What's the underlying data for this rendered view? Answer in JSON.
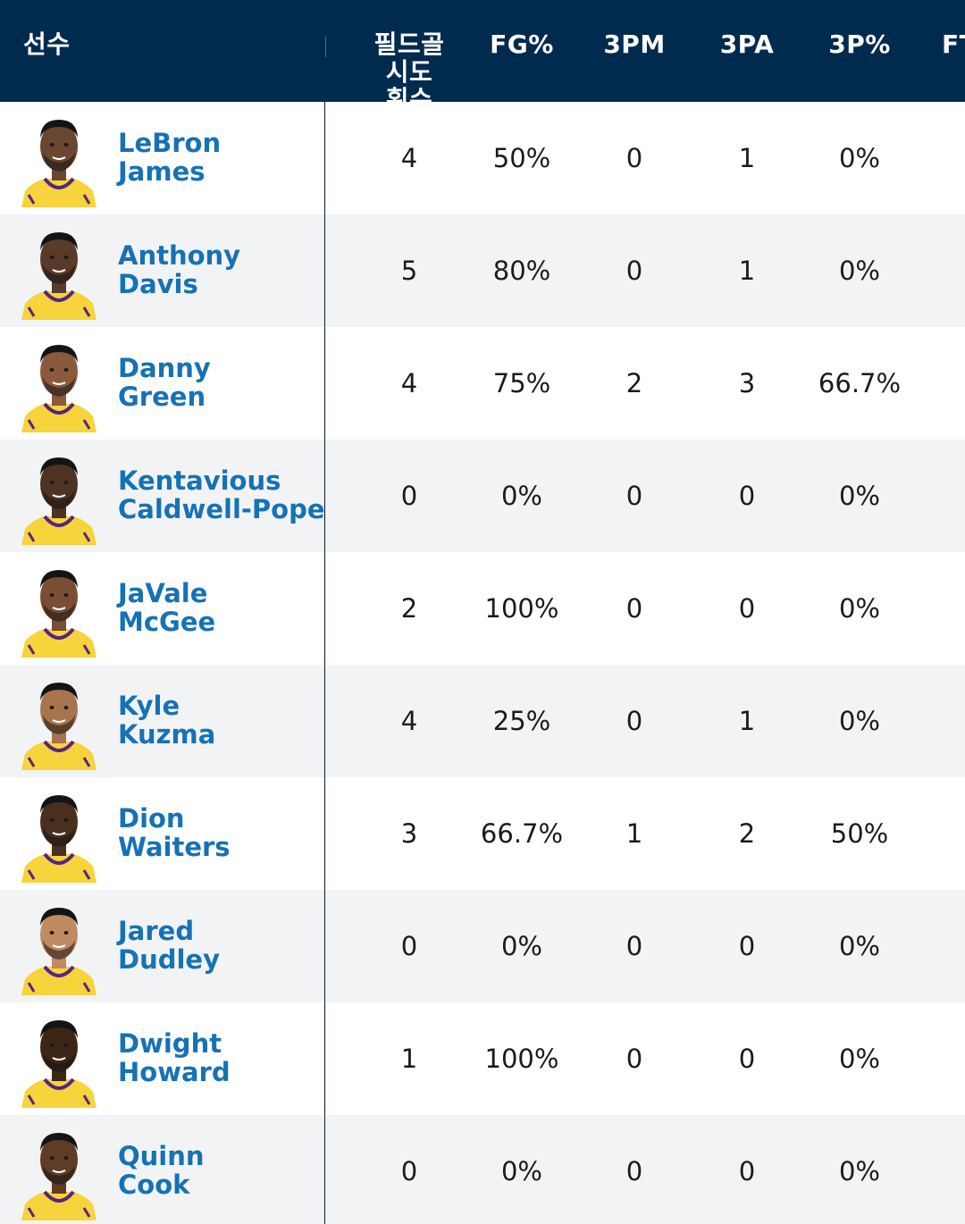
{
  "columns": {
    "player": "선수",
    "fga": "필드골 시도 횟수",
    "fg_pct": "FG%",
    "three_pm": "3PM",
    "three_pa": "3PA",
    "three_pct": "3P%",
    "ft": "FT"
  },
  "players": [
    {
      "first": "LeBron",
      "last": "James",
      "fga": "4",
      "fg_pct": "50%",
      "three_pm": "0",
      "three_pa": "1",
      "three_pct": "0%"
    },
    {
      "first": "Anthony",
      "last": "Davis",
      "fga": "5",
      "fg_pct": "80%",
      "three_pm": "0",
      "three_pa": "1",
      "three_pct": "0%"
    },
    {
      "first": "Danny",
      "last": "Green",
      "fga": "4",
      "fg_pct": "75%",
      "three_pm": "2",
      "three_pa": "3",
      "three_pct": "66.7%"
    },
    {
      "first": "Kentavious",
      "last": "Caldwell-Pope",
      "fga": "0",
      "fg_pct": "0%",
      "three_pm": "0",
      "three_pa": "0",
      "three_pct": "0%"
    },
    {
      "first": "JaVale",
      "last": "McGee",
      "fga": "2",
      "fg_pct": "100%",
      "three_pm": "0",
      "three_pa": "0",
      "three_pct": "0%"
    },
    {
      "first": "Kyle",
      "last": "Kuzma",
      "fga": "4",
      "fg_pct": "25%",
      "three_pm": "0",
      "three_pa": "1",
      "three_pct": "0%"
    },
    {
      "first": "Dion",
      "last": "Waiters",
      "fga": "3",
      "fg_pct": "66.7%",
      "three_pm": "1",
      "three_pa": "2",
      "three_pct": "50%"
    },
    {
      "first": "Jared",
      "last": "Dudley",
      "fga": "0",
      "fg_pct": "0%",
      "three_pm": "0",
      "three_pa": "0",
      "three_pct": "0%"
    },
    {
      "first": "Dwight",
      "last": "Howard",
      "fga": "1",
      "fg_pct": "100%",
      "three_pm": "0",
      "three_pa": "0",
      "three_pct": "0%"
    },
    {
      "first": "Quinn",
      "last": "Cook",
      "fga": "0",
      "fg_pct": "0%",
      "three_pm": "0",
      "three_pa": "0",
      "three_pct": "0%"
    }
  ],
  "colors": {
    "header_bg": "#002b4f",
    "player_link": "#1672b5",
    "jersey_yellow": "#f7d33c",
    "jersey_purple": "#552583",
    "row_alt": "#f2f3f5"
  }
}
